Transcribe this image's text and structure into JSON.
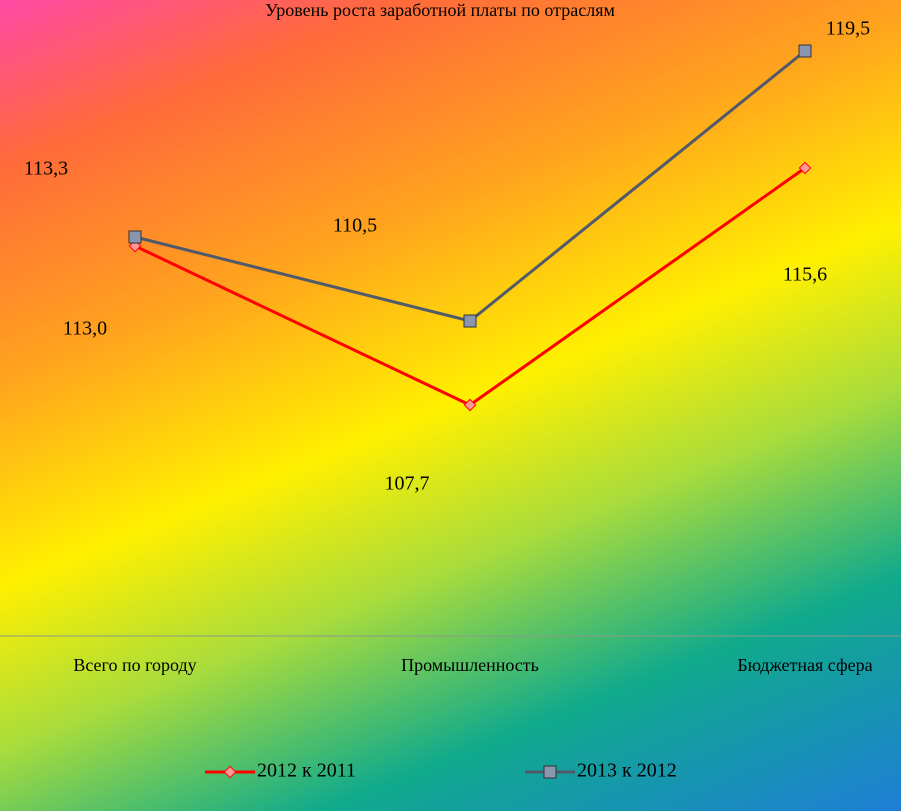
{
  "chart_data": {
    "type": "line",
    "title": "Уровень роста заработной платы по отраслям",
    "categories": [
      "Всего по городу",
      "Промышленность",
      "Бюджетная сфера"
    ],
    "series": [
      {
        "name": "2012 к 2011",
        "color": "#ff0000",
        "values": [
          113.0,
          107.7,
          115.6
        ],
        "value_labels": [
          "113,0",
          "107,7",
          "115,6"
        ]
      },
      {
        "name": "2013 к 2012",
        "color": "#505a6a",
        "values": [
          113.3,
          110.5,
          119.5
        ],
        "value_labels": [
          "113,3",
          "110,5",
          "119,5"
        ]
      }
    ],
    "ylim": [
      100,
      120
    ]
  }
}
